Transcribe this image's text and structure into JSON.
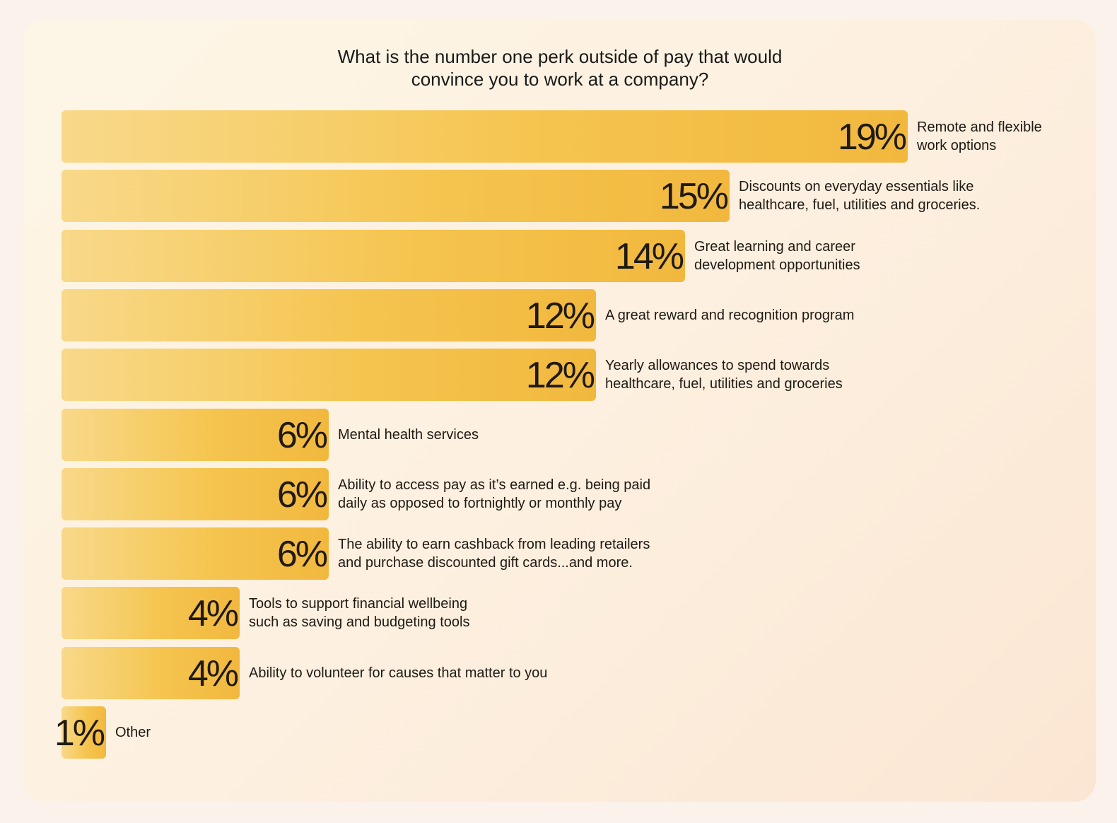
{
  "chart_data": {
    "type": "bar",
    "orientation": "horizontal",
    "title_lines": [
      "What is the number one perk outside of pay that would",
      "convince you to work at a company?"
    ],
    "unit": "%",
    "categories": [
      "Remote and flexible\nwork options",
      "Discounts on everyday essentials like\nhealthcare, fuel, utilities and groceries.",
      "Great learning and career\ndevelopment opportunities",
      "A great reward and recognition program",
      "Yearly allowances to spend towards\nhealthcare, fuel, utilities and groceries",
      "Mental health services",
      "Ability to access pay as it’s earned e.g. being paid\ndaily as opposed to fortnightly or monthly pay",
      "The ability to earn cashback from leading retailers\nand purchase discounted gift cards...and more.",
      "Tools to support financial wellbeing\nsuch as saving and budgeting tools",
      "Ability to volunteer for causes that matter to you",
      "Other"
    ],
    "values": [
      19,
      15,
      14,
      12,
      12,
      6,
      6,
      6,
      4,
      4,
      1
    ],
    "value_labels": [
      "19%",
      "15%",
      "14%",
      "12%",
      "12%",
      "6%",
      "6%",
      "6%",
      "4%",
      "4%",
      "1%"
    ],
    "grid": false,
    "legend": "none",
    "bar_color_start": "#f8d98a",
    "bar_color_end": "#f2b83e"
  }
}
